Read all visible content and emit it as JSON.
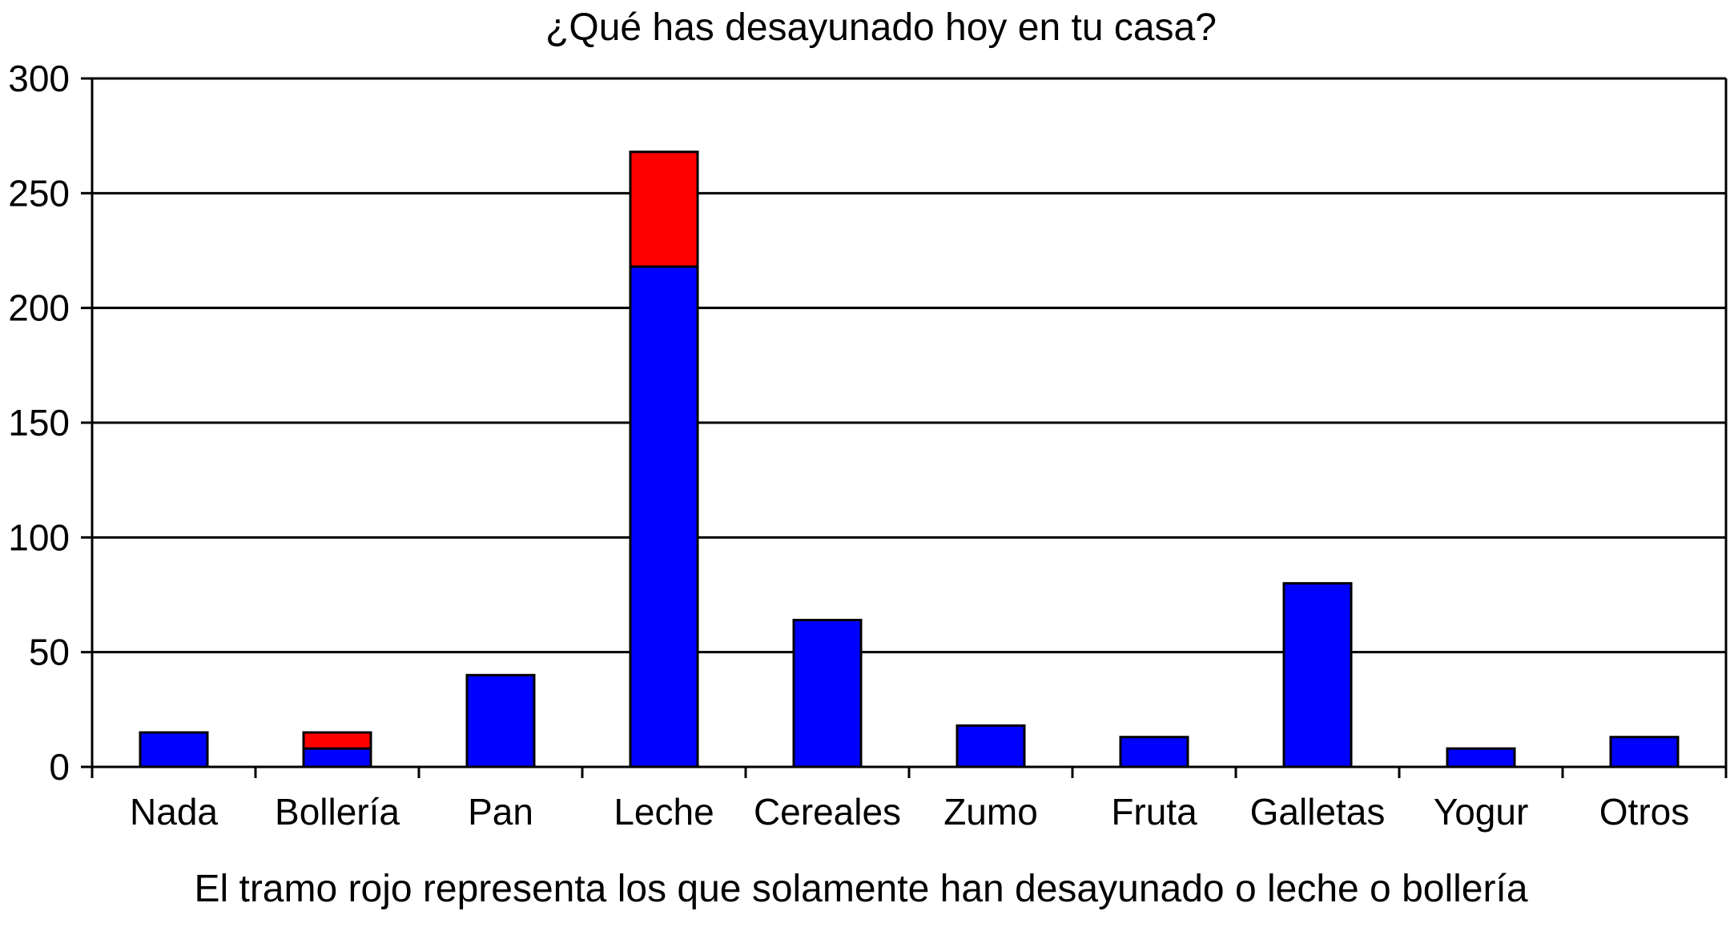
{
  "chart_data": {
    "type": "bar",
    "stacked": true,
    "title": "¿Qué has desayunado hoy en tu casa?",
    "subtitle": "",
    "xlabel": "",
    "ylabel": "",
    "caption": "El tramo rojo representa los que solamente han desayunado o leche o bollería",
    "categories": [
      "Nada",
      "Bollería",
      "Pan",
      "Leche",
      "Cereales",
      "Zumo",
      "Fruta",
      "Galletas",
      "Yogur",
      "Otros"
    ],
    "series": [
      {
        "color": "#0000ff",
        "values": [
          15,
          8,
          40,
          218,
          64,
          18,
          13,
          80,
          8,
          13
        ]
      },
      {
        "color": "#ff0000",
        "values": [
          0,
          7,
          0,
          50,
          0,
          0,
          0,
          0,
          0,
          0
        ]
      }
    ],
    "ylim": [
      0,
      300
    ],
    "yticks": [
      0,
      50,
      100,
      150,
      200,
      250,
      300
    ],
    "grid": true,
    "legend": "none"
  }
}
